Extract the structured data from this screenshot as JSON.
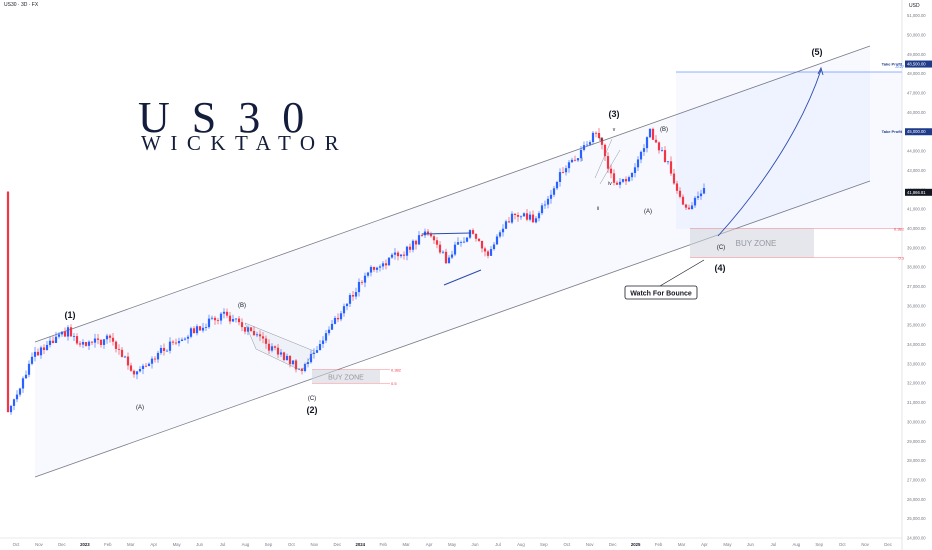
{
  "header": {
    "symbol": "US30 · 3D · FX",
    "currency": "USD"
  },
  "brand": {
    "title": "US30",
    "subtitle": "WICKTATOR"
  },
  "chart_data": {
    "type": "candlestick",
    "y_ticks": [
      "51,000.00",
      "50,000.00",
      "49,000.00",
      "48,000.00",
      "47,000.00",
      "46,000.00",
      "45,000.00",
      "44,000.00",
      "43,000.00",
      "42,000.00",
      "41,000.00",
      "40,000.00",
      "39,000.00",
      "38,000.00",
      "37,000.00",
      "36,000.00",
      "35,000.00",
      "34,000.00",
      "33,000.00",
      "32,000.00",
      "31,000.00",
      "30,000.00",
      "29,000.00",
      "28,000.00",
      "27,000.00",
      "26,000.00",
      "25,000.00",
      "24,000.00"
    ],
    "ylim": [
      24000,
      51500
    ],
    "x_ticks": [
      "Oct",
      "Nov",
      "Dec",
      "2023",
      "Feb",
      "Mar",
      "Apr",
      "May",
      "Jun",
      "Jul",
      "Aug",
      "Sep",
      "Oct",
      "Nov",
      "Dec",
      "2024",
      "Feb",
      "Mar",
      "Apr",
      "May",
      "Jun",
      "Jul",
      "Aug",
      "Sep",
      "Oct",
      "Nov",
      "Dec",
      "2025",
      "Feb",
      "Mar",
      "Apr",
      "May",
      "Jun",
      "Jul",
      "Aug",
      "Sep",
      "Oct",
      "Nov",
      "Dec"
    ],
    "price_path": [
      [
        0,
        30500
      ],
      [
        4,
        33300
      ],
      [
        10,
        34700
      ],
      [
        12,
        33900
      ],
      [
        17,
        34300
      ],
      [
        21,
        32600
      ],
      [
        28,
        34200
      ],
      [
        36,
        35600
      ],
      [
        43,
        34000
      ],
      [
        49,
        32700
      ],
      [
        54,
        35000
      ],
      [
        60,
        37800
      ],
      [
        66,
        38800
      ],
      [
        70,
        39900
      ],
      [
        73,
        38400
      ],
      [
        77,
        39900
      ],
      [
        80,
        38600
      ],
      [
        84,
        40700
      ],
      [
        88,
        40500
      ],
      [
        92,
        42800
      ],
      [
        96,
        44100
      ],
      [
        98,
        45100
      ],
      [
        101,
        42300
      ],
      [
        104,
        42700
      ],
      [
        107,
        45000
      ],
      [
        110,
        43300
      ],
      [
        113,
        41000
      ],
      [
        116,
        41900
      ]
    ],
    "waves": [
      {
        "label": "(1)",
        "price": 35000
      },
      {
        "label": "(A)",
        "price": 31300
      },
      {
        "label": "(B)",
        "price": 35600
      },
      {
        "label": "(C)",
        "price": 31300
      },
      {
        "label": "(2)",
        "price": 30800
      },
      {
        "label": "(3)",
        "price": 46200
      },
      {
        "label": "i",
        "price": 44000
      },
      {
        "label": "ii",
        "price": 41700
      },
      {
        "label": "iii",
        "price": 45200
      },
      {
        "label": "iv",
        "price": 42500
      },
      {
        "label": "v",
        "price": 45600
      },
      {
        "label": "(A)",
        "price": 41400
      },
      {
        "label": "(B)",
        "price": 45800
      },
      {
        "label": "(C)",
        "price": 39300
      },
      {
        "label": "(4)",
        "price": 38400
      },
      {
        "label": "(5)",
        "price": 49600
      }
    ],
    "zones": [
      {
        "label": "BUY ZONE",
        "top": 40000,
        "bottom": 38500,
        "fib_top": "0.382",
        "fib_bottom": "0.5"
      },
      {
        "label": "BUY ZONE",
        "top": 32700,
        "bottom": 32000,
        "fib_top": "0.382",
        "fib_bottom": "0.5"
      }
    ],
    "price_labels": [
      {
        "text": "48,500.00",
        "price": 48500,
        "note": "Take Profit",
        "fib": "-0.27"
      },
      {
        "text": "45,000.00",
        "price": 45000,
        "note": "Take Profit"
      },
      {
        "text": "41,866.81",
        "price": 41870
      }
    ],
    "annotation": "Watch For Bounce",
    "colors": {
      "up": "#2962ff",
      "down": "#f23645",
      "channel": "#787b86",
      "projection": "#2a4bab"
    }
  }
}
